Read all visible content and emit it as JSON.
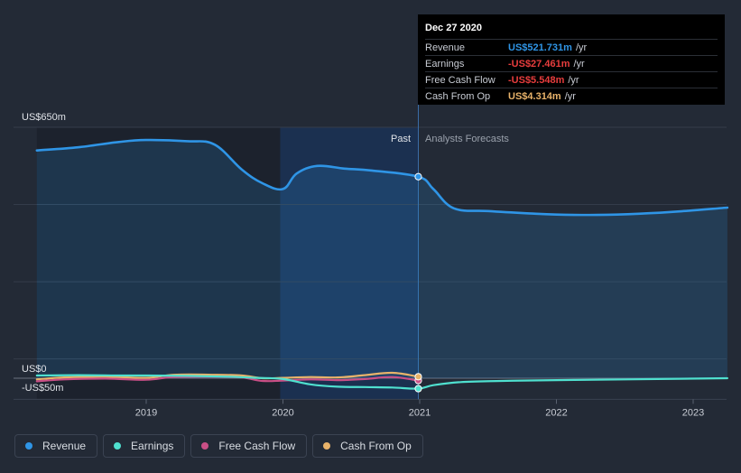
{
  "tooltip": {
    "date": "Dec 27 2020",
    "rows": [
      {
        "label": "Revenue",
        "value": "US$521.731m",
        "unit": "/yr",
        "color": "#2f95e6"
      },
      {
        "label": "Earnings",
        "value": "-US$27.461m",
        "unit": "/yr",
        "color": "#e83d3d"
      },
      {
        "label": "Free Cash Flow",
        "value": "-US$5.548m",
        "unit": "/yr",
        "color": "#e83d3d"
      },
      {
        "label": "Cash From Op",
        "value": "US$4.314m",
        "unit": "/yr",
        "color": "#e8b36a"
      }
    ]
  },
  "section_labels": {
    "past": "Past",
    "forecast": "Analysts Forecasts"
  },
  "legend": [
    {
      "label": "Revenue",
      "color": "#2f95e6"
    },
    {
      "label": "Earnings",
      "color": "#4fe0cf"
    },
    {
      "label": "Free Cash Flow",
      "color": "#c94f86"
    },
    {
      "label": "Cash From Op",
      "color": "#e8b36a"
    }
  ],
  "chart_data": {
    "type": "line",
    "y_tick_labels": [
      {
        "value": 650,
        "label": "US$650m"
      },
      {
        "value": 0,
        "label": "US$0"
      },
      {
        "value": -50,
        "label": "-US$50m"
      }
    ],
    "ylim": [
      -50,
      650
    ],
    "xlim": [
      2018.2,
      2023.25
    ],
    "x_ticks": [
      2019,
      2020,
      2021,
      2022,
      2023
    ],
    "x_tick_labels": [
      "2019",
      "2020",
      "2021",
      "2022",
      "2023"
    ],
    "past_shade_start": 2018.2,
    "past_dark_end": 2019.98,
    "past_end": 2020.99,
    "highlight_x": 2020.99,
    "series": [
      {
        "name": "Revenue",
        "color": "#2f95e6",
        "points": [
          [
            2018.2,
            590
          ],
          [
            2018.5,
            598
          ],
          [
            2018.8,
            612
          ],
          [
            2019.0,
            617
          ],
          [
            2019.3,
            614
          ],
          [
            2019.5,
            605
          ],
          [
            2019.7,
            540
          ],
          [
            2019.85,
            505
          ],
          [
            2020.0,
            490
          ],
          [
            2020.1,
            530
          ],
          [
            2020.25,
            550
          ],
          [
            2020.45,
            543
          ],
          [
            2020.65,
            538
          ],
          [
            2020.99,
            522
          ],
          [
            2021.1,
            490
          ],
          [
            2021.25,
            440
          ],
          [
            2021.5,
            433
          ],
          [
            2021.8,
            427
          ],
          [
            2022.0,
            424
          ],
          [
            2022.3,
            423
          ],
          [
            2022.6,
            426
          ],
          [
            2022.9,
            432
          ],
          [
            2023.25,
            442
          ]
        ]
      },
      {
        "name": "Earnings",
        "color": "#4fe0cf",
        "points": [
          [
            2018.2,
            7
          ],
          [
            2018.5,
            8
          ],
          [
            2018.8,
            7
          ],
          [
            2019.0,
            7
          ],
          [
            2019.3,
            6
          ],
          [
            2019.6,
            4
          ],
          [
            2019.8,
            1
          ],
          [
            2020.0,
            -2
          ],
          [
            2020.2,
            -16
          ],
          [
            2020.4,
            -22
          ],
          [
            2020.6,
            -23
          ],
          [
            2020.8,
            -24
          ],
          [
            2020.99,
            -27
          ],
          [
            2021.1,
            -18
          ],
          [
            2021.3,
            -10
          ],
          [
            2021.6,
            -7
          ],
          [
            2022.0,
            -5
          ],
          [
            2022.5,
            -3
          ],
          [
            2023.25,
            0
          ]
        ]
      },
      {
        "name": "Free Cash Flow",
        "color": "#c94f86",
        "points": [
          [
            2018.2,
            -8
          ],
          [
            2018.4,
            -3
          ],
          [
            2018.7,
            -1
          ],
          [
            2019.0,
            -4
          ],
          [
            2019.2,
            3
          ],
          [
            2019.5,
            4
          ],
          [
            2019.7,
            2
          ],
          [
            2019.85,
            -7
          ],
          [
            2020.0,
            -6
          ],
          [
            2020.2,
            -3
          ],
          [
            2020.4,
            -5
          ],
          [
            2020.6,
            -2
          ],
          [
            2020.8,
            3
          ],
          [
            2020.99,
            -6
          ]
        ]
      },
      {
        "name": "Cash From Op",
        "color": "#e8b36a",
        "points": [
          [
            2018.2,
            -3
          ],
          [
            2018.4,
            2
          ],
          [
            2018.7,
            4
          ],
          [
            2019.0,
            1
          ],
          [
            2019.2,
            9
          ],
          [
            2019.5,
            9
          ],
          [
            2019.7,
            7
          ],
          [
            2019.85,
            0
          ],
          [
            2020.0,
            1
          ],
          [
            2020.2,
            3
          ],
          [
            2020.4,
            2
          ],
          [
            2020.6,
            8
          ],
          [
            2020.8,
            14
          ],
          [
            2020.99,
            4
          ]
        ]
      }
    ]
  }
}
